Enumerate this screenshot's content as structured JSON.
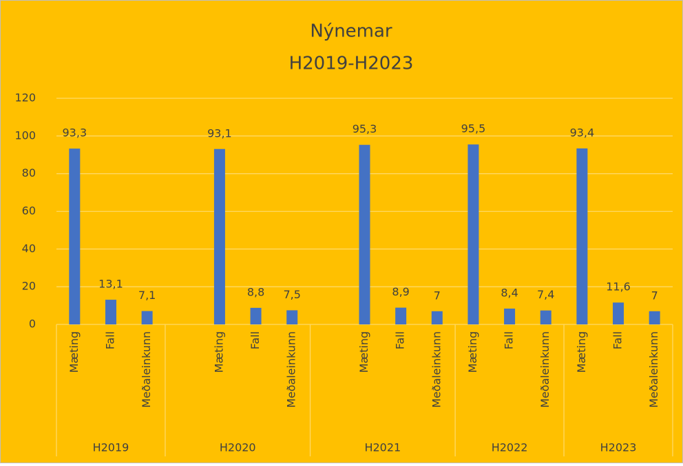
{
  "chart_data": {
    "type": "bar",
    "title": "Nýnemar",
    "subtitle": "H2019-H2023",
    "groups": [
      {
        "name": "H2019",
        "categories": [
          "Mæting",
          "Fall",
          "Meðaleinkunn"
        ],
        "values": [
          93.3,
          13.1,
          7.1
        ],
        "value_labels": [
          "93,3",
          "13,1",
          "7,1"
        ]
      },
      {
        "name": "H2020",
        "categories": [
          null,
          "Mæting",
          "Fall",
          "Meðaleinkunn"
        ],
        "values": [
          null,
          93.1,
          8.8,
          7.5
        ],
        "value_labels": [
          null,
          "93,1",
          "8,8",
          "7,5"
        ]
      },
      {
        "name": "H2021",
        "categories": [
          null,
          "Mæting",
          "Fall",
          "Meðaleinkunn"
        ],
        "values": [
          null,
          95.3,
          8.9,
          7
        ],
        "value_labels": [
          null,
          "95,3",
          "8,9",
          "7"
        ]
      },
      {
        "name": "H2022",
        "categories": [
          "Mæting",
          "Fall",
          "Meðaleinkunn"
        ],
        "values": [
          95.5,
          8.4,
          7.4
        ],
        "value_labels": [
          "95,5",
          "8,4",
          "7,4"
        ]
      },
      {
        "name": "H2023",
        "categories": [
          "Mæting",
          "Fall",
          "Meðaleinkunn"
        ],
        "values": [
          93.4,
          11.6,
          7
        ],
        "value_labels": [
          "93,4",
          "11,6",
          "7"
        ]
      }
    ],
    "color": "#4472c4",
    "background": "#ffc000",
    "ylim": [
      0,
      120
    ],
    "yticks": [
      0,
      20,
      40,
      60,
      80,
      100,
      120
    ],
    "grid": true
  }
}
